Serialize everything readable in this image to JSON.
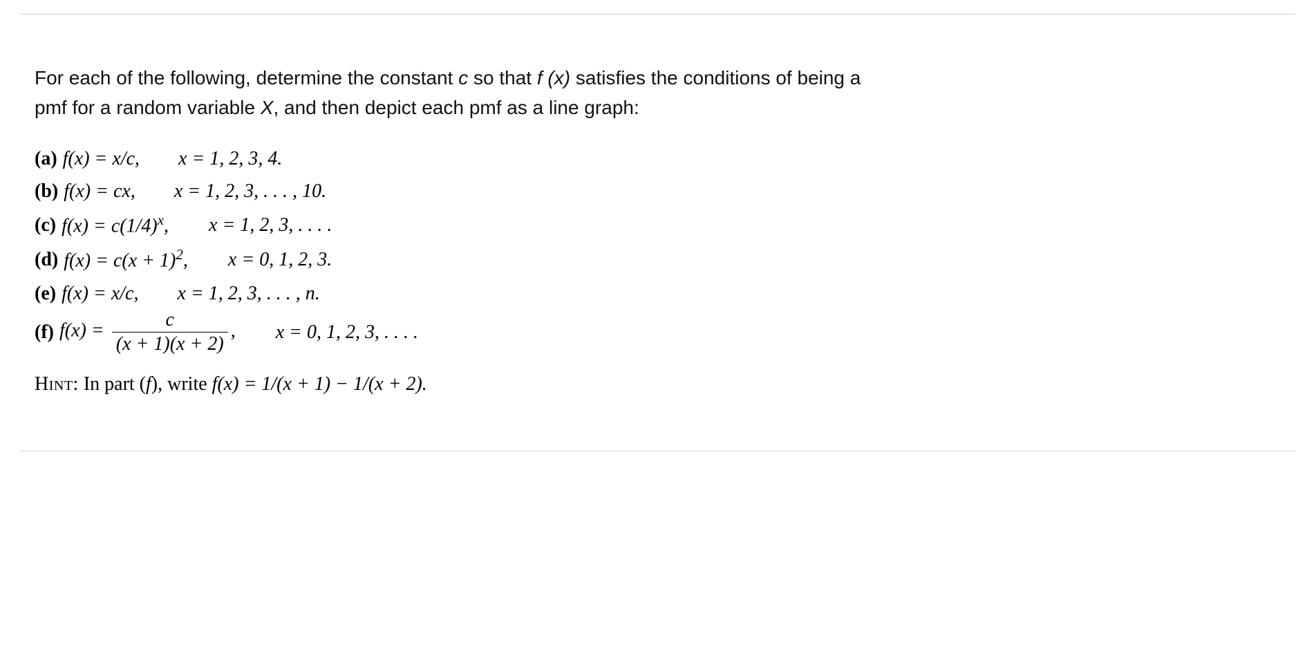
{
  "colors": {
    "text": "#111111",
    "border": "#d0d0d0",
    "background": "#ffffff"
  },
  "typography": {
    "intro_font": "Arial, Helvetica, sans-serif",
    "math_font": "Times New Roman, Times, serif",
    "intro_size_pt": 21,
    "math_size_pt": 21
  },
  "intro": {
    "line1a": "For each of the following, determine the constant ",
    "c": "c",
    "line1b": " so that ",
    "fx": "f (x)",
    "line1c": " satisfies the conditions of being a",
    "line2a": "pmf for a random variable ",
    "X": "X",
    "line2b": ", and then depict each pmf as a line graph:"
  },
  "parts": {
    "a": {
      "label": "(a)",
      "lhs": "f(x) = x/c,",
      "rhs": "x = 1, 2, 3, 4."
    },
    "b": {
      "label": "(b)",
      "lhs": "f(x) = cx,",
      "rhs": "x = 1, 2, 3, . . . , 10."
    },
    "c": {
      "label": "(c)",
      "lhs_pre": "f(x) = c(1/4)",
      "lhs_exp": "x",
      "lhs_post": ",",
      "rhs": "x = 1, 2, 3, . . . ."
    },
    "d": {
      "label": "(d)",
      "lhs_pre": "f(x) = c(x + 1)",
      "lhs_exp": "2",
      "lhs_post": ",",
      "rhs": "x = 0, 1, 2, 3."
    },
    "e": {
      "label": "(e)",
      "lhs": "f(x) = x/c,",
      "rhs": "x = 1, 2, 3, . . . , n."
    },
    "f": {
      "label": "(f)",
      "lhs_pre": "f(x) = ",
      "frac_num": "c",
      "frac_den": "(x + 1)(x + 2)",
      "lhs_post": ",",
      "rhs": "x = 0, 1, 2, 3, . . . ."
    }
  },
  "hint": {
    "label": "Hint:",
    "text_a": " In part (",
    "f": "f",
    "text_b": "), write ",
    "eq": "f(x) = 1/(x + 1) − 1/(x + 2)."
  }
}
